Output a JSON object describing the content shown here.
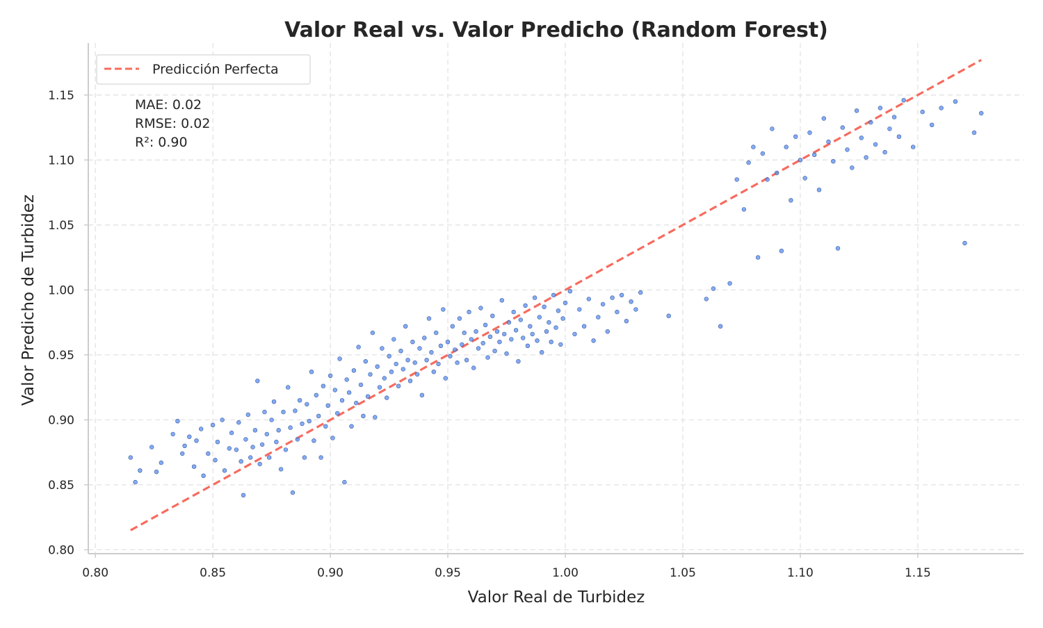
{
  "chart_data": {
    "type": "scatter",
    "title": "Valor Real vs. Valor Predicho (Random Forest)",
    "xlabel": "Valor Real de Turbidez",
    "ylabel": "Valor Predicho de Turbidez",
    "xlim": [
      0.797,
      1.195
    ],
    "ylim": [
      0.797,
      1.19
    ],
    "x_ticks": [
      0.8,
      0.85,
      0.9,
      0.95,
      1.0,
      1.05,
      1.1,
      1.15
    ],
    "y_ticks": [
      0.8,
      0.85,
      0.9,
      0.95,
      1.0,
      1.05,
      1.1,
      1.15
    ],
    "x_tick_labels": [
      "0.80",
      "0.85",
      "0.90",
      "0.95",
      "1.00",
      "1.05",
      "1.10",
      "1.15"
    ],
    "y_tick_labels": [
      "0.80",
      "0.85",
      "0.90",
      "0.95",
      "1.00",
      "1.05",
      "1.10",
      "1.15"
    ],
    "grid": true,
    "legend_position": "top-left",
    "legend": [
      {
        "label": "Predicción Perfecta",
        "color": "#f76b5e",
        "style": "dashed"
      }
    ],
    "reference_line": {
      "x": [
        0.815,
        1.177
      ],
      "y": [
        0.815,
        1.177
      ]
    },
    "metrics_text": [
      "MAE: 0.02",
      "RMSE: 0.02",
      "R²: 0.90"
    ],
    "colors": {
      "points": "#5b8ff0",
      "point_edge": "#3a5a9e",
      "reference_line": "#f76b5e",
      "grid": "#e2e2e2",
      "axis": "#cccccc",
      "text": "#262626"
    },
    "series": [
      {
        "points_x": [
          0.815,
          0.817,
          0.819,
          0.824,
          0.826,
          0.828,
          0.833,
          0.835,
          0.837,
          0.838,
          0.84,
          0.842,
          0.843,
          0.845,
          0.846,
          0.848,
          0.85,
          0.851,
          0.852,
          0.854,
          0.855,
          0.857,
          0.858,
          0.86,
          0.861,
          0.862,
          0.863,
          0.864,
          0.865,
          0.866,
          0.867,
          0.868,
          0.869,
          0.87,
          0.871,
          0.872,
          0.873,
          0.874,
          0.875,
          0.876,
          0.877,
          0.878,
          0.879,
          0.88,
          0.881,
          0.882,
          0.883,
          0.884,
          0.885,
          0.886,
          0.887,
          0.888,
          0.889,
          0.89,
          0.891,
          0.892,
          0.893,
          0.894,
          0.895,
          0.896,
          0.897,
          0.898,
          0.899,
          0.9,
          0.901,
          0.902,
          0.903,
          0.904,
          0.905,
          0.906,
          0.907,
          0.908,
          0.909,
          0.91,
          0.911,
          0.912,
          0.913,
          0.914,
          0.915,
          0.916,
          0.917,
          0.918,
          0.919,
          0.92,
          0.921,
          0.922,
          0.923,
          0.924,
          0.925,
          0.926,
          0.927,
          0.928,
          0.929,
          0.93,
          0.931,
          0.932,
          0.933,
          0.934,
          0.935,
          0.936,
          0.937,
          0.938,
          0.939,
          0.94,
          0.941,
          0.942,
          0.943,
          0.944,
          0.945,
          0.946,
          0.947,
          0.948,
          0.949,
          0.95,
          0.951,
          0.952,
          0.953,
          0.954,
          0.955,
          0.956,
          0.957,
          0.958,
          0.959,
          0.96,
          0.961,
          0.962,
          0.963,
          0.964,
          0.965,
          0.966,
          0.967,
          0.968,
          0.969,
          0.97,
          0.971,
          0.972,
          0.973,
          0.974,
          0.975,
          0.976,
          0.977,
          0.978,
          0.979,
          0.98,
          0.981,
          0.982,
          0.983,
          0.984,
          0.985,
          0.986,
          0.987,
          0.988,
          0.989,
          0.99,
          0.991,
          0.992,
          0.993,
          0.994,
          0.995,
          0.996,
          0.997,
          0.998,
          0.999,
          1.0,
          1.002,
          1.004,
          1.006,
          1.008,
          1.01,
          1.012,
          1.014,
          1.016,
          1.018,
          1.02,
          1.022,
          1.024,
          1.026,
          1.028,
          1.03,
          1.032,
          1.044,
          1.06,
          1.063,
          1.066,
          1.07,
          1.073,
          1.076,
          1.078,
          1.08,
          1.082,
          1.084,
          1.086,
          1.088,
          1.09,
          1.092,
          1.094,
          1.096,
          1.098,
          1.1,
          1.102,
          1.104,
          1.106,
          1.108,
          1.11,
          1.112,
          1.114,
          1.116,
          1.118,
          1.12,
          1.122,
          1.124,
          1.126,
          1.128,
          1.13,
          1.132,
          1.134,
          1.136,
          1.138,
          1.14,
          1.142,
          1.144,
          1.148,
          1.152,
          1.156,
          1.16,
          1.166,
          1.17,
          1.174,
          1.177
        ],
        "points_y": [
          0.871,
          0.852,
          0.861,
          0.879,
          0.86,
          0.867,
          0.889,
          0.899,
          0.874,
          0.88,
          0.887,
          0.864,
          0.884,
          0.893,
          0.857,
          0.874,
          0.896,
          0.869,
          0.883,
          0.9,
          0.861,
          0.878,
          0.89,
          0.877,
          0.898,
          0.868,
          0.842,
          0.885,
          0.904,
          0.871,
          0.879,
          0.892,
          0.93,
          0.866,
          0.881,
          0.906,
          0.889,
          0.871,
          0.9,
          0.914,
          0.883,
          0.892,
          0.862,
          0.906,
          0.877,
          0.925,
          0.894,
          0.844,
          0.907,
          0.885,
          0.915,
          0.897,
          0.871,
          0.912,
          0.899,
          0.937,
          0.884,
          0.919,
          0.903,
          0.871,
          0.926,
          0.895,
          0.911,
          0.934,
          0.886,
          0.923,
          0.905,
          0.947,
          0.915,
          0.852,
          0.931,
          0.921,
          0.895,
          0.938,
          0.913,
          0.956,
          0.927,
          0.903,
          0.945,
          0.918,
          0.935,
          0.967,
          0.902,
          0.941,
          0.925,
          0.955,
          0.932,
          0.917,
          0.949,
          0.937,
          0.962,
          0.943,
          0.926,
          0.953,
          0.939,
          0.972,
          0.946,
          0.93,
          0.96,
          0.944,
          0.935,
          0.955,
          0.919,
          0.963,
          0.946,
          0.978,
          0.952,
          0.937,
          0.967,
          0.943,
          0.957,
          0.985,
          0.932,
          0.96,
          0.949,
          0.972,
          0.954,
          0.944,
          0.978,
          0.958,
          0.967,
          0.946,
          0.983,
          0.962,
          0.94,
          0.968,
          0.955,
          0.986,
          0.959,
          0.973,
          0.948,
          0.964,
          0.98,
          0.953,
          0.968,
          0.96,
          0.992,
          0.966,
          0.951,
          0.975,
          0.962,
          0.983,
          0.969,
          0.945,
          0.977,
          0.963,
          0.988,
          0.957,
          0.972,
          0.966,
          0.994,
          0.961,
          0.979,
          0.952,
          0.987,
          0.968,
          0.975,
          0.96,
          0.996,
          0.971,
          0.984,
          0.958,
          0.978,
          0.99,
          0.999,
          0.966,
          0.985,
          0.972,
          0.993,
          0.961,
          0.979,
          0.989,
          0.968,
          0.994,
          0.983,
          0.996,
          0.976,
          0.991,
          0.985,
          0.998,
          0.98,
          0.993,
          1.001,
          0.972,
          1.005,
          1.085,
          1.062,
          1.098,
          1.11,
          1.025,
          1.105,
          1.085,
          1.124,
          1.09,
          1.03,
          1.11,
          1.069,
          1.118,
          1.1,
          1.086,
          1.121,
          1.104,
          1.077,
          1.132,
          1.114,
          1.099,
          1.032,
          1.125,
          1.108,
          1.094,
          1.138,
          1.117,
          1.102,
          1.129,
          1.112,
          1.14,
          1.106,
          1.124,
          1.133,
          1.118,
          1.146,
          1.11,
          1.137,
          1.127,
          1.14,
          1.145,
          1.036,
          1.121,
          1.136,
          1.113,
          1.144,
          1.14,
          1.124,
          1.134,
          1.136
        ]
      }
    ]
  }
}
